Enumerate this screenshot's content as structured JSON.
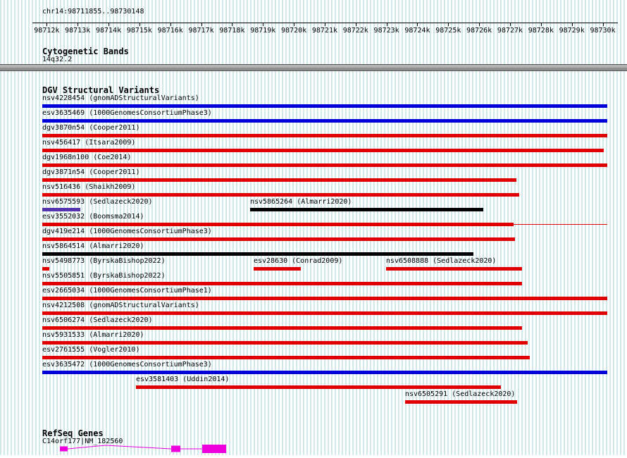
{
  "page": {
    "region_label": "chr14:98711855..98730148"
  },
  "cytobands": {
    "title": "Cytogenetic Bands",
    "band": "14q32.2"
  },
  "dgv": {
    "title": "DGV Structural Variants"
  },
  "refseq": {
    "title": "RefSeq Genes",
    "gene_label": "C14orf177|NM_182560"
  },
  "colors": {
    "gain_blue": "#0000d8",
    "loss_red": "#e00000",
    "inversion_purple": "#5533aa",
    "complex_black": "#000000",
    "gene_pink": "#ee00dd",
    "band_gray": "#9a9a9a",
    "stripe_cyan": "#d2e9eb",
    "axis_black": "#000000"
  },
  "chart_data": {
    "type": "bar",
    "subtype": "genome-browser-interval-tracks",
    "title": "DGV Structural Variants",
    "region": {
      "chromosome": "chr14",
      "start": 98711855,
      "end": 98730148
    },
    "x_axis": {
      "unit": "bp",
      "tick_labels": [
        "98712k",
        "98713k",
        "98714k",
        "98715k",
        "98716k",
        "98717k",
        "98718k",
        "98719k",
        "98720k",
        "98721k",
        "98722k",
        "98723k",
        "98724k",
        "98725k",
        "98726k",
        "98727k",
        "98728k",
        "98729k",
        "98730k"
      ]
    },
    "tracks": {
      "cytogenetic_band": {
        "label": "14q32.2",
        "start": 98711855,
        "end": 98730148
      },
      "variants": [
        {
          "row": 0,
          "label": "nsv4228454 (gnomADStructuralVariants)",
          "color_key": "gain_blue",
          "start": 98711855,
          "end": 98730148
        },
        {
          "row": 1,
          "label": "esv3635469 (1000GenomesConsortiumPhase3)",
          "color_key": "gain_blue",
          "start": 98711855,
          "end": 98730148
        },
        {
          "row": 2,
          "label": "dgv3870n54 (Cooper2011)",
          "color_key": "loss_red",
          "start": 98711855,
          "end": 98730148
        },
        {
          "row": 3,
          "label": "nsv456417 (Itsara2009)",
          "color_key": "loss_red",
          "start": 98711855,
          "end": 98730031
        },
        {
          "row": 4,
          "label": "dgv1968n100 (Coe2014)",
          "color_key": "loss_red",
          "start": 98711855,
          "end": 98730148
        },
        {
          "row": 5,
          "label": "dgv3871n54 (Cooper2011)",
          "color_key": "loss_red",
          "start": 98711855,
          "end": 98727203
        },
        {
          "row": 6,
          "label": "nsv516436 (Shaikh2009)",
          "color_key": "loss_red",
          "start": 98711855,
          "end": 98727294
        },
        {
          "row": 7,
          "label": "nsv6575593 (Sedlazeck2020)",
          "color_key": "inversion_purple",
          "start": 98711855,
          "end": 98713086
        },
        {
          "row": 7,
          "label": "nsv5865264 (Almarri2020)",
          "color_key": "complex_black",
          "start": 98718583,
          "end": 98726131
        },
        {
          "row": 8,
          "label": "esv3552032 (Boomsma2014)",
          "color_key": "loss_red",
          "start": 98711855,
          "end": 98727112,
          "thin_line_end": 98730148
        },
        {
          "row": 9,
          "label": "dgv419e214 (1000GenomesConsortiumPhase3)",
          "color_key": "loss_red",
          "start": 98711855,
          "end": 98727157
        },
        {
          "row": 10,
          "label": "nsv5864514 (Almarri2020)",
          "color_key": "complex_black",
          "start": 98711855,
          "end": 98725812
        },
        {
          "row": 11,
          "label": "nsv5498773 (ByrskaBishop2022)",
          "color_key": "loss_red",
          "start": 98711855,
          "end": 98712083
        },
        {
          "row": 11,
          "label": "esv28630 (Conrad2009)",
          "color_key": "loss_red",
          "start": 98718697,
          "end": 98720224
        },
        {
          "row": 11,
          "label": "nsv6508888 (Sedlazeck2020)",
          "color_key": "loss_red",
          "start": 98722984,
          "end": 98727385
        },
        {
          "row": 12,
          "label": "nsv5505851 (ByrskaBishop2022)",
          "color_key": "loss_red",
          "start": 98711855,
          "end": 98727385
        },
        {
          "row": 13,
          "label": "esv2665034 (1000GenomesConsortiumPhase1)",
          "color_key": "loss_red",
          "start": 98711855,
          "end": 98730148
        },
        {
          "row": 14,
          "label": "nsv4212508 (gnomADStructuralVariants)",
          "color_key": "loss_red",
          "start": 98711855,
          "end": 98730148
        },
        {
          "row": 15,
          "label": "nsv6506274 (Sedlazeck2020)",
          "color_key": "loss_red",
          "start": 98711855,
          "end": 98727385
        },
        {
          "row": 16,
          "label": "nsv5931533 (Almarri2020)",
          "color_key": "loss_red",
          "start": 98711855,
          "end": 98727568
        },
        {
          "row": 17,
          "label": "esv2761555 (Vogler2010)",
          "color_key": "loss_red",
          "start": 98711855,
          "end": 98727636
        },
        {
          "row": 18,
          "label": "esv3635472 (1000GenomesConsortiumPhase3)",
          "color_key": "gain_blue",
          "start": 98711855,
          "end": 98730148
        },
        {
          "row": 19,
          "label": "esv3581403 (Uddin2014)",
          "color_key": "loss_red",
          "start": 98714888,
          "end": 98726701
        },
        {
          "row": 20,
          "label": "nsv6505291 (Sedlazeck2020)",
          "color_key": "loss_red",
          "start": 98723600,
          "end": 98727226
        }
      ],
      "gene": {
        "label": "C14orf177|NM_182560",
        "color_key": "gene_pink",
        "exons": [
          {
            "start": 98712425,
            "end": 98712676
          },
          {
            "start": 98716029,
            "end": 98716326
          },
          {
            "start": 98717033,
            "end": 98717808
          }
        ],
        "intron_peak_bp": 98713907
      }
    }
  }
}
